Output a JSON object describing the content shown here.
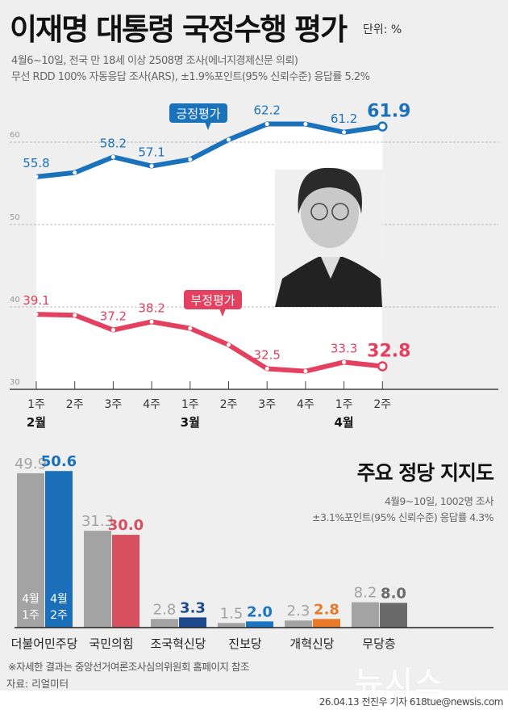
{
  "header": {
    "title": "이재명 대통령 국정수행 평가",
    "unit": "단위: %",
    "survey_line1": "4월6~10일, 전국 만 18세 이상 2508명 조사(에너지경제신문 의뢰)",
    "survey_line2": "무선 RDD 100% 자동응답 조사(ARS), ±1.9%포인트(95% 신뢰수준) 응답률 5.2%"
  },
  "chart_data": [
    {
      "type": "line",
      "title": "이재명 대통령 국정수행 평가",
      "ylim": [
        30,
        65
      ],
      "yticks": [
        "60",
        "50",
        "40",
        "30"
      ],
      "grid": true,
      "categories": [
        "1주",
        "2주",
        "3주",
        "4주",
        "1주",
        "2주",
        "3주",
        "4주",
        "1주",
        "2주"
      ],
      "month_labels": [
        {
          "label": "2월",
          "index": 0
        },
        {
          "label": "3월",
          "index": 4
        },
        {
          "label": "4월",
          "index": 8
        }
      ],
      "series": [
        {
          "name": "긍정평가",
          "color": "#1a72bb",
          "values": [
            55.8,
            56.3,
            58.2,
            57.1,
            57.9,
            60.3,
            62.2,
            62.2,
            61.2,
            61.9
          ],
          "labels": [
            "55.8",
            "",
            "58.2",
            "57.1",
            "",
            "",
            "62.2",
            "",
            "61.2",
            "61.9"
          ]
        },
        {
          "name": "부정평가",
          "color": "#e3415f",
          "values": [
            39.1,
            39.0,
            37.2,
            38.2,
            37.4,
            35.4,
            32.5,
            32.2,
            33.3,
            32.8
          ],
          "labels": [
            "39.1",
            "",
            "37.2",
            "38.2",
            "",
            "",
            "32.5",
            "",
            "33.3",
            "32.8"
          ]
        }
      ]
    },
    {
      "type": "bar",
      "title": "주요 정당 지지도",
      "categories": [
        "더불어민주당",
        "국민의힘",
        "조국혁신당",
        "진보당",
        "개혁신당",
        "무당층"
      ],
      "series": [
        {
          "name": "4월 1주",
          "values": [
            49.9,
            31.3,
            2.8,
            1.5,
            2.3,
            8.2
          ],
          "labels": [
            "49.9",
            "31.3",
            "2.8",
            "1.5",
            "2.3",
            "8.2"
          ]
        },
        {
          "name": "4월 2주",
          "values": [
            50.6,
            30.0,
            3.3,
            2.0,
            2.8,
            8.0
          ],
          "labels": [
            "50.6",
            "30.0",
            "3.3",
            "2.0",
            "2.8",
            "8.0"
          ],
          "colors": [
            "#1a6fb8",
            "#d6505f",
            "#1d4a8c",
            "#1a75c4",
            "#e87a2a",
            "#6a6a6a"
          ]
        }
      ],
      "legend_labels": {
        "w1_month": "4월",
        "w1_week": "1주",
        "w2_month": "4월",
        "w2_week": "2주"
      }
    }
  ],
  "party": {
    "title": "주요 정당 지지도",
    "survey_line1": "4월9~10일, 1002명 조사",
    "survey_line2": "±3.1%포인트(95% 신뢰수준) 응답률 4.3%"
  },
  "footer": {
    "note": "※자세한 결과는 중앙선거여론조사심의위원회 홈페이지 참조",
    "source": "자료: 리얼미터",
    "logo": "뉴시스",
    "credit": "26.04.13 전진우 기자 618tue@newsis.com"
  }
}
